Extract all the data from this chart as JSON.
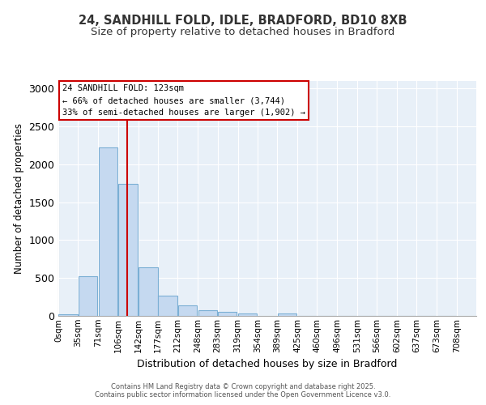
{
  "title1": "24, SANDHILL FOLD, IDLE, BRADFORD, BD10 8XB",
  "title2": "Size of property relative to detached houses in Bradford",
  "xlabel": "Distribution of detached houses by size in Bradford",
  "ylabel": "Number of detached properties",
  "bin_labels": [
    "0sqm",
    "35sqm",
    "71sqm",
    "106sqm",
    "142sqm",
    "177sqm",
    "212sqm",
    "248sqm",
    "283sqm",
    "319sqm",
    "354sqm",
    "389sqm",
    "425sqm",
    "460sqm",
    "496sqm",
    "531sqm",
    "566sqm",
    "602sqm",
    "637sqm",
    "673sqm",
    "708sqm"
  ],
  "bin_edges": [
    0,
    35,
    71,
    106,
    142,
    177,
    212,
    248,
    283,
    319,
    354,
    389,
    425,
    460,
    496,
    531,
    566,
    602,
    637,
    673,
    708
  ],
  "bar_heights": [
    20,
    520,
    2220,
    1740,
    640,
    265,
    140,
    80,
    50,
    30,
    0,
    30,
    5,
    5,
    5,
    5,
    5,
    5,
    5,
    5,
    0
  ],
  "bar_color": "#c5d9f0",
  "bar_edge_color": "#7bafd4",
  "vline_x": 123,
  "vline_color": "#cc0000",
  "ylim": [
    0,
    3100
  ],
  "yticks": [
    0,
    500,
    1000,
    1500,
    2000,
    2500,
    3000
  ],
  "annotation_text": "24 SANDHILL FOLD: 123sqm\n← 66% of detached houses are smaller (3,744)\n33% of semi-detached houses are larger (1,902) →",
  "annotation_box_color": "#ffffff",
  "annotation_box_edge": "#cc0000",
  "footer1": "Contains HM Land Registry data © Crown copyright and database right 2025.",
  "footer2": "Contains public sector information licensed under the Open Government Licence v3.0.",
  "background_color": "#ffffff",
  "plot_bg_color": "#e8f0f8",
  "grid_color": "#ffffff"
}
